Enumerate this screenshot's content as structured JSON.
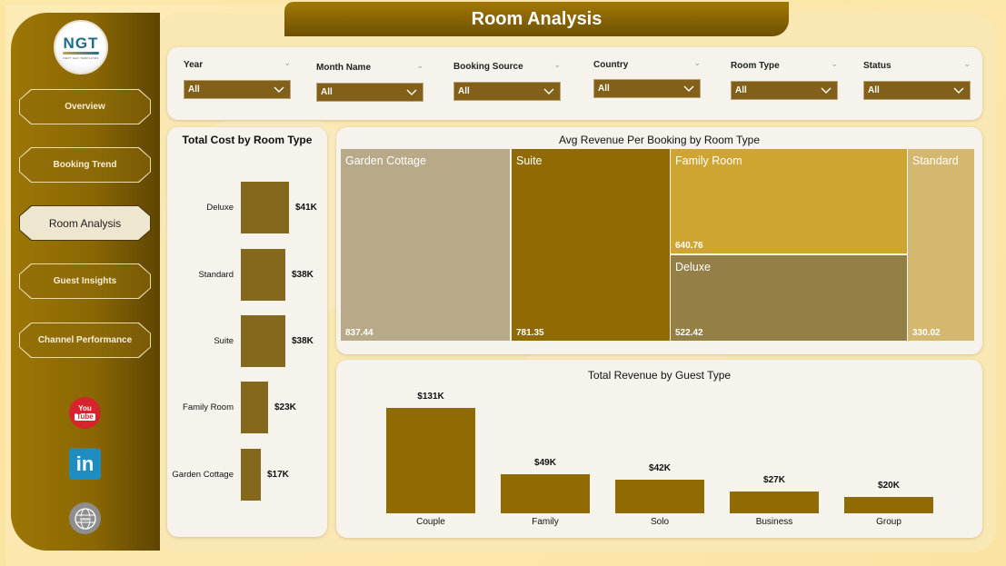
{
  "header": {
    "title": "Room Analysis"
  },
  "logo": {
    "text": "NGT",
    "subtext": "NEXT GEN TEMPLATES"
  },
  "sidebar": {
    "items": [
      {
        "label": "Overview",
        "active": false
      },
      {
        "label": "Booking Trend",
        "active": false
      },
      {
        "label": "Room Analysis",
        "active": true
      },
      {
        "label": "Guest Insights",
        "active": false
      },
      {
        "label": "Channel Performance",
        "active": false
      }
    ],
    "social": [
      {
        "icon": "youtube-icon",
        "line1": "You",
        "line2": "Tube"
      },
      {
        "icon": "linkedin-icon",
        "text": "in"
      },
      {
        "icon": "website-globe-icon",
        "text": "www"
      }
    ]
  },
  "filters": [
    {
      "label": "Year",
      "value": "All"
    },
    {
      "label": "Month Name",
      "value": "All"
    },
    {
      "label": "Booking Source",
      "value": "All"
    },
    {
      "label": "Country",
      "value": "All"
    },
    {
      "label": "Room Type",
      "value": "All"
    },
    {
      "label": "Status",
      "value": "All"
    }
  ],
  "colors": {
    "accent": "#8a6704",
    "bar": "#83681d",
    "vbar": "#906b03",
    "treemap": {
      "Garden Cottage": "#b8aa88",
      "Suite": "#906b03",
      "Family Room": "#cea433",
      "Deluxe": "#948046",
      "Standard": "#d4b870"
    }
  },
  "chart_data": [
    {
      "type": "bar",
      "orientation": "horizontal",
      "title": "Total Cost by Room Type",
      "categories": [
        "Deluxe",
        "Standard",
        "Suite",
        "Family Room",
        "Garden Cottage"
      ],
      "values": [
        41000,
        38000,
        38000,
        23000,
        17000
      ],
      "labels": [
        "$41K",
        "$38K",
        "$38K",
        "$23K",
        "$17K"
      ],
      "xlabel": "",
      "ylabel": "",
      "grid": false
    },
    {
      "type": "treemap",
      "title": "Avg Revenue Per Booking by Room Type",
      "categories": [
        "Garden Cottage",
        "Suite",
        "Family Room",
        "Deluxe",
        "Standard"
      ],
      "values": [
        837.44,
        781.35,
        640.76,
        522.42,
        330.02
      ],
      "labels": [
        "837.44",
        "781.35",
        "640.76",
        "522.42",
        "330.02"
      ]
    },
    {
      "type": "bar",
      "orientation": "vertical",
      "title": "Total Revenue by Guest Type",
      "categories": [
        "Couple",
        "Family",
        "Solo",
        "Business",
        "Group"
      ],
      "values": [
        131000,
        49000,
        42000,
        27000,
        20000
      ],
      "labels": [
        "$131K",
        "$49K",
        "$42K",
        "$27K",
        "$20K"
      ],
      "xlabel": "",
      "ylabel": "",
      "grid": false
    }
  ]
}
